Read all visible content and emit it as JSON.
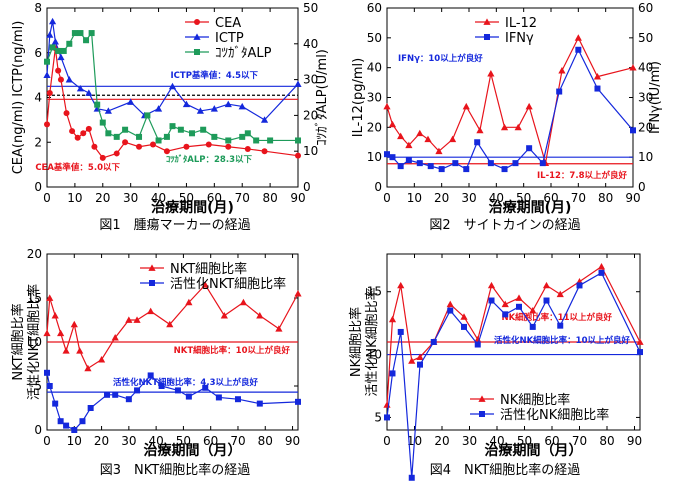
{
  "colors": {
    "red": "#e8141c",
    "blue": "#1428dc",
    "green": "#1e9b5a",
    "dark_red": "#c81414",
    "black": "#000000"
  },
  "chart_data": [
    {
      "id": "fig1",
      "type": "line",
      "caption": "図1　腫瘍マーカーの経過",
      "xlabel": "治療期間(月)",
      "ylabel_left": "CEA(ng/ml)  ICTP(ng/ml)",
      "ylabel_right": "ｺﾂｶﾞﾀALP(U/ml)",
      "xlim": [
        0,
        90
      ],
      "xticks": [
        0,
        10,
        20,
        30,
        40,
        50,
        60,
        70,
        80,
        90
      ],
      "ylim_left": [
        0,
        8
      ],
      "yticks_left": [
        0,
        2,
        4,
        6,
        8
      ],
      "ylim_right": [
        0,
        50
      ],
      "yticks_right": [
        0,
        10,
        20,
        30,
        40,
        50
      ],
      "series": [
        {
          "name": "CEA",
          "axis": "left",
          "color": "#e8141c",
          "marker": "circle",
          "x": [
            0,
            1,
            3,
            4,
            5,
            7,
            9,
            11,
            13,
            15,
            17,
            20,
            25,
            28,
            33,
            38,
            43,
            50,
            58,
            65,
            72,
            78,
            90
          ],
          "y": [
            2.8,
            4.2,
            6.2,
            5.2,
            4.8,
            3.3,
            2.5,
            2.2,
            2.4,
            2.6,
            1.8,
            1.3,
            1.5,
            2.0,
            1.8,
            1.9,
            1.6,
            1.8,
            1.9,
            1.8,
            1.7,
            1.6,
            1.4
          ]
        },
        {
          "name": "ICTP",
          "axis": "left",
          "color": "#1428dc",
          "marker": "triangle",
          "x": [
            0,
            1,
            2,
            3,
            5,
            8,
            12,
            15,
            18,
            22,
            30,
            35,
            40,
            45,
            50,
            55,
            60,
            65,
            70,
            78,
            90
          ],
          "y": [
            5.0,
            6.8,
            7.4,
            6.5,
            5.8,
            4.8,
            4.4,
            4.2,
            3.5,
            3.4,
            3.8,
            3.2,
            3.5,
            4.5,
            3.7,
            3.4,
            3.5,
            3.7,
            3.6,
            3.0,
            4.6
          ]
        },
        {
          "name": "ｺﾂｶﾞﾀALP",
          "axis": "right",
          "color": "#1e9b5a",
          "marker": "square",
          "x": [
            0,
            2,
            4,
            6,
            8,
            10,
            12,
            14,
            16,
            18,
            20,
            22,
            25,
            28,
            33,
            36,
            40,
            43,
            45,
            48,
            52,
            56,
            60,
            65,
            70,
            72,
            75,
            80,
            90
          ],
          "y": [
            35,
            39,
            38,
            38,
            40,
            43,
            43,
            41,
            43,
            23,
            18,
            15,
            14,
            16,
            14,
            20,
            13,
            14,
            17,
            16,
            15,
            16,
            14,
            13,
            14,
            15,
            13,
            13,
            13
          ]
        }
      ],
      "reference_lines": [
        {
          "label": "ICTP基準値：4.5以下",
          "axis": "left",
          "value": 4.5,
          "color": "#1428dc",
          "style": "solid"
        },
        {
          "label": "",
          "axis": "left",
          "value": 4.1,
          "color": "#000000",
          "style": "dashed"
        },
        {
          "label": "CEA基準値：5.0以下",
          "axis": "right",
          "value": 24.5,
          "color": "#e8141c",
          "style": "solid"
        },
        {
          "label": "ｺﾂｶﾞﾀALP：28.3以下",
          "axis": "right",
          "value": 24.0,
          "color": "#1e9b5a",
          "style": "none"
        }
      ],
      "legend": "top-center"
    },
    {
      "id": "fig2",
      "type": "line",
      "caption": "図2　サイトカインの経過",
      "xlabel": "治療期間(月)",
      "ylabel_left": "IL-12(pg/ml)",
      "ylabel_right": "IFNγ(IU/ml)",
      "xlim": [
        0,
        90
      ],
      "xticks": [
        0,
        10,
        20,
        30,
        40,
        50,
        60,
        70,
        80,
        90
      ],
      "ylim_left": [
        0,
        60
      ],
      "yticks_left": [
        0,
        10,
        20,
        30,
        40,
        50,
        60
      ],
      "ylim_right": [
        0,
        60
      ],
      "yticks_right": [
        0,
        10,
        20,
        30,
        40,
        50,
        60
      ],
      "series": [
        {
          "name": "IL-12",
          "axis": "left",
          "color": "#e8141c",
          "marker": "triangle",
          "x": [
            0,
            2,
            5,
            8,
            12,
            15,
            19,
            24,
            29,
            34,
            38,
            43,
            48,
            52,
            58,
            64,
            70,
            77,
            90
          ],
          "y": [
            27,
            21,
            17,
            14,
            18,
            16,
            12,
            16,
            27,
            19,
            38,
            20,
            20,
            27,
            8,
            39,
            50,
            37,
            40
          ]
        },
        {
          "name": "IFNγ",
          "axis": "left",
          "color": "#1428dc",
          "marker": "square",
          "x": [
            0,
            2,
            5,
            8,
            12,
            16,
            20,
            25,
            29,
            33,
            38,
            43,
            47,
            52,
            57,
            63,
            70,
            77,
            90
          ],
          "y": [
            11,
            10,
            7,
            9,
            8,
            7,
            6,
            8,
            6,
            15,
            8,
            6,
            8,
            13,
            8,
            32,
            46,
            33,
            19
          ]
        }
      ],
      "reference_lines": [
        {
          "label": "IFNγ：10以上が良好",
          "axis": "left",
          "value": 10,
          "color": "#1428dc",
          "style": "solid"
        },
        {
          "label": "IL-12：7.8以上が良好",
          "axis": "left",
          "value": 7.8,
          "color": "#e8141c",
          "style": "solid"
        }
      ],
      "legend": "top-center"
    },
    {
      "id": "fig3",
      "type": "line",
      "caption": "図3　NKT細胞比率の経過",
      "xlabel": "治療期間（月）",
      "ylabel_left": "NKT細胞比率",
      "ylabel_left2": "活性化NKT細胞比率",
      "xlim": [
        0,
        92
      ],
      "xticks": [
        0,
        10,
        20,
        30,
        40,
        50,
        60,
        70,
        80,
        90
      ],
      "ylim_left": [
        0,
        20
      ],
      "yticks_left": [
        0,
        5,
        10,
        15,
        20
      ],
      "series": [
        {
          "name": "NKT細胞比率",
          "axis": "left",
          "color": "#e8141c",
          "marker": "triangle",
          "x": [
            0,
            1,
            3,
            5,
            7,
            10,
            12,
            15,
            20,
            25,
            30,
            33,
            38,
            45,
            52,
            58,
            65,
            72,
            78,
            85,
            92
          ],
          "y": [
            11,
            15,
            13,
            11,
            9,
            12,
            9,
            7,
            8,
            10.5,
            12.5,
            12.5,
            13.5,
            12,
            14.5,
            16.5,
            13,
            14.5,
            13,
            11.5,
            15.5
          ]
        },
        {
          "name": "活性化NKT細胞比率",
          "axis": "left",
          "color": "#1428dc",
          "marker": "square",
          "x": [
            0,
            1,
            3,
            5,
            7,
            10,
            13,
            16,
            22,
            25,
            30,
            33,
            38,
            42,
            48,
            52,
            58,
            63,
            70,
            78,
            92
          ],
          "y": [
            6.5,
            5,
            3,
            1,
            0.5,
            0,
            1,
            2.5,
            4,
            4,
            3.5,
            4.5,
            6.2,
            5,
            4.5,
            3.8,
            4.8,
            3.7,
            3.5,
            3,
            3.2
          ]
        }
      ],
      "reference_lines": [
        {
          "label": "NKT細胞比率：10以上が良好",
          "axis": "left",
          "value": 10,
          "color": "#e8141c",
          "style": "solid"
        },
        {
          "label": "活性化NKT細胞比率：4.3以上が良好",
          "axis": "left",
          "value": 4.3,
          "color": "#1428dc",
          "style": "solid"
        }
      ],
      "legend": "top-right"
    },
    {
      "id": "fig4",
      "type": "line",
      "caption": "図4　NKT細胞比率の経過",
      "xlabel": "治療期間（月）",
      "ylabel_left": "NK細胞比率",
      "ylabel_left2": "活性化NK細胞比率",
      "xlim": [
        0,
        92
      ],
      "xticks": [
        0,
        10,
        20,
        30,
        40,
        50,
        60,
        70,
        80,
        90
      ],
      "ylim_left": [
        4,
        18
      ],
      "yticks_left": [
        5,
        10,
        15
      ],
      "series": [
        {
          "name": "NK細胞比率",
          "axis": "left",
          "color": "#e8141c",
          "marker": "triangle",
          "x": [
            0,
            2,
            5,
            9,
            12,
            17,
            23,
            28,
            33,
            38,
            43,
            48,
            53,
            58,
            63,
            70,
            78,
            92
          ],
          "y": [
            6,
            12.8,
            15.5,
            9.5,
            9.8,
            11,
            14,
            13,
            11.2,
            15.5,
            14,
            14.5,
            13.5,
            15.5,
            14.8,
            15.8,
            17,
            11
          ]
        },
        {
          "name": "活性化NK細胞比率",
          "axis": "left",
          "color": "#1428dc",
          "marker": "square",
          "x": [
            0,
            2,
            5,
            9,
            12,
            17,
            23,
            28,
            33,
            38,
            43,
            48,
            53,
            58,
            63,
            70,
            78,
            92
          ],
          "y": [
            5,
            8.5,
            11.8,
            0.2,
            9.2,
            11,
            13.5,
            12.2,
            10.8,
            14.3,
            13.2,
            13.8,
            12.2,
            14.3,
            12.3,
            15.5,
            16.5,
            10.2
          ]
        }
      ],
      "reference_lines": [
        {
          "label": "NK細胞比率：11以上が良好",
          "axis": "left",
          "value": 11,
          "color": "#e8141c",
          "style": "solid"
        },
        {
          "label": "活性化NK細胞比率：10以上が良好",
          "axis": "left",
          "value": 10,
          "color": "#1428dc",
          "style": "solid"
        }
      ],
      "legend": "bottom-center"
    }
  ]
}
